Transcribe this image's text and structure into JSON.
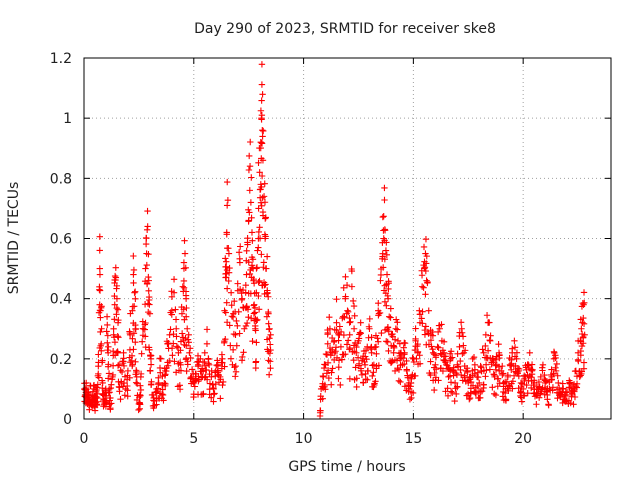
{
  "chart_data": {
    "type": "scatter",
    "title": "Day 290 of 2023, SRMTID for receiver ske8",
    "xlabel": "GPS time / hours",
    "ylabel": "SRMTID / TECUs",
    "xlim": [
      0,
      24
    ],
    "ylim": [
      0,
      1.2
    ],
    "xticks": [
      0,
      5,
      10,
      15,
      20
    ],
    "xtick_labels": [
      "0",
      "5",
      "10",
      "15",
      "20"
    ],
    "yticks": [
      0,
      0.2,
      0.4,
      0.6,
      0.8,
      1.0,
      1.2
    ],
    "ytick_labels": [
      "0",
      "0.2",
      "0.4",
      "0.6",
      "0.8",
      "1",
      "1.2"
    ],
    "grid": true,
    "marker": "+",
    "color": "#ff0000",
    "envelope_note": "dense cloud of points; values approximate",
    "series": [
      {
        "name": "SRMTID",
        "points": [
          [
            0.02,
            0.1
          ],
          [
            0.05,
            0.08
          ],
          [
            0.1,
            0.12
          ],
          [
            0.15,
            0.07
          ],
          [
            0.2,
            0.09
          ],
          [
            0.25,
            0.06
          ],
          [
            0.3,
            0.11
          ],
          [
            0.35,
            0.05
          ],
          [
            0.4,
            0.08
          ],
          [
            0.45,
            0.1
          ],
          [
            0.5,
            0.06
          ],
          [
            0.55,
            0.09
          ],
          [
            0.6,
            0.07
          ],
          [
            0.65,
            0.15
          ],
          [
            0.7,
            0.43
          ],
          [
            0.72,
            0.5
          ],
          [
            0.75,
            0.36
          ],
          [
            0.8,
            0.3
          ],
          [
            0.85,
            0.12
          ],
          [
            0.9,
            0.08
          ],
          [
            0.95,
            0.06
          ],
          [
            1.0,
            0.09
          ],
          [
            1.05,
            0.34
          ],
          [
            1.1,
            0.22
          ],
          [
            1.15,
            0.1
          ],
          [
            1.2,
            0.07
          ],
          [
            1.3,
            0.14
          ],
          [
            1.35,
            0.28
          ],
          [
            1.4,
            0.38
          ],
          [
            1.45,
            0.47
          ],
          [
            1.5,
            0.4
          ],
          [
            1.55,
            0.32
          ],
          [
            1.6,
            0.18
          ],
          [
            1.7,
            0.12
          ],
          [
            1.8,
            0.22
          ],
          [
            1.9,
            0.1
          ],
          [
            2.0,
            0.16
          ],
          [
            2.1,
            0.28
          ],
          [
            2.2,
            0.36
          ],
          [
            2.25,
            0.48
          ],
          [
            2.3,
            0.42
          ],
          [
            2.35,
            0.3
          ],
          [
            2.4,
            0.14
          ],
          [
            2.5,
            0.05
          ],
          [
            2.55,
            0.08
          ],
          [
            2.6,
            0.15
          ],
          [
            2.7,
            0.3
          ],
          [
            2.8,
            0.5
          ],
          [
            2.85,
            0.55
          ],
          [
            2.9,
            0.64
          ],
          [
            2.95,
            0.46
          ],
          [
            3.0,
            0.35
          ],
          [
            3.05,
            0.2
          ],
          [
            3.1,
            0.08
          ],
          [
            3.2,
            0.06
          ],
          [
            3.3,
            0.1
          ],
          [
            3.4,
            0.12
          ],
          [
            3.5,
            0.2
          ],
          [
            3.6,
            0.08
          ],
          [
            3.7,
            0.16
          ],
          [
            3.8,
            0.25
          ],
          [
            3.9,
            0.28
          ],
          [
            4.0,
            0.36
          ],
          [
            4.1,
            0.42
          ],
          [
            4.2,
            0.3
          ],
          [
            4.3,
            0.22
          ],
          [
            4.4,
            0.18
          ],
          [
            4.5,
            0.44
          ],
          [
            4.55,
            0.52
          ],
          [
            4.6,
            0.55
          ],
          [
            4.65,
            0.4
          ],
          [
            4.7,
            0.3
          ],
          [
            4.8,
            0.22
          ],
          [
            4.9,
            0.14
          ],
          [
            5.0,
            0.12
          ],
          [
            5.1,
            0.15
          ],
          [
            5.2,
            0.18
          ],
          [
            5.3,
            0.2
          ],
          [
            5.4,
            0.14
          ],
          [
            5.5,
            0.22
          ],
          [
            5.6,
            0.25
          ],
          [
            5.7,
            0.18
          ],
          [
            5.8,
            0.14
          ],
          [
            5.9,
            0.1
          ],
          [
            6.0,
            0.16
          ],
          [
            6.1,
            0.18
          ],
          [
            6.2,
            0.14
          ],
          [
            6.3,
            0.2
          ],
          [
            6.4,
            0.36
          ],
          [
            6.45,
            0.47
          ],
          [
            6.5,
            0.62
          ],
          [
            6.52,
            0.71
          ],
          [
            6.6,
            0.55
          ],
          [
            6.7,
            0.42
          ],
          [
            6.8,
            0.35
          ],
          [
            6.9,
            0.28
          ],
          [
            7.0,
            0.45
          ],
          [
            7.1,
            0.52
          ],
          [
            7.2,
            0.4
          ],
          [
            7.3,
            0.3
          ],
          [
            7.4,
            0.48
          ],
          [
            7.45,
            0.58
          ],
          [
            7.5,
            0.66
          ],
          [
            7.55,
            0.76
          ],
          [
            7.6,
            0.72
          ],
          [
            7.65,
            0.62
          ],
          [
            7.7,
            0.5
          ],
          [
            7.75,
            0.38
          ],
          [
            7.8,
            0.3
          ],
          [
            7.85,
            0.42
          ],
          [
            7.9,
            0.56
          ],
          [
            7.95,
            0.7
          ],
          [
            8.0,
            0.82
          ],
          [
            8.05,
            0.92
          ],
          [
            8.08,
            1.0
          ],
          [
            8.1,
            1.01
          ],
          [
            8.12,
            0.96
          ],
          [
            8.15,
            0.86
          ],
          [
            8.2,
            0.74
          ],
          [
            8.25,
            0.6
          ],
          [
            8.3,
            0.5
          ],
          [
            8.35,
            0.42
          ],
          [
            8.4,
            0.35
          ],
          [
            8.45,
            0.3
          ],
          [
            8.5,
            0.28
          ],
          [
            10.75,
            0.01
          ],
          [
            10.8,
            0.1
          ],
          [
            10.9,
            0.14
          ],
          [
            11.0,
            0.18
          ],
          [
            11.1,
            0.25
          ],
          [
            11.2,
            0.3
          ],
          [
            11.3,
            0.22
          ],
          [
            11.4,
            0.26
          ],
          [
            11.5,
            0.32
          ],
          [
            11.6,
            0.28
          ],
          [
            11.7,
            0.24
          ],
          [
            11.8,
            0.34
          ],
          [
            11.9,
            0.4
          ],
          [
            12.0,
            0.36
          ],
          [
            12.1,
            0.28
          ],
          [
            12.2,
            0.44
          ],
          [
            12.3,
            0.3
          ],
          [
            12.4,
            0.22
          ],
          [
            12.5,
            0.26
          ],
          [
            12.6,
            0.32
          ],
          [
            12.7,
            0.2
          ],
          [
            12.8,
            0.18
          ],
          [
            12.9,
            0.24
          ],
          [
            13.0,
            0.3
          ],
          [
            13.1,
            0.22
          ],
          [
            13.2,
            0.18
          ],
          [
            13.3,
            0.24
          ],
          [
            13.4,
            0.36
          ],
          [
            13.5,
            0.46
          ],
          [
            13.6,
            0.54
          ],
          [
            13.65,
            0.6
          ],
          [
            13.7,
            0.63
          ],
          [
            13.75,
            0.56
          ],
          [
            13.8,
            0.48
          ],
          [
            13.85,
            0.4
          ],
          [
            13.9,
            0.34
          ],
          [
            14.0,
            0.28
          ],
          [
            14.1,
            0.22
          ],
          [
            14.2,
            0.3
          ],
          [
            14.3,
            0.26
          ],
          [
            14.4,
            0.2
          ],
          [
            14.5,
            0.18
          ],
          [
            14.6,
            0.22
          ],
          [
            14.7,
            0.16
          ],
          [
            14.8,
            0.12
          ],
          [
            14.9,
            0.14
          ],
          [
            15.0,
            0.2
          ],
          [
            15.1,
            0.26
          ],
          [
            15.2,
            0.22
          ],
          [
            15.3,
            0.32
          ],
          [
            15.4,
            0.44
          ],
          [
            15.5,
            0.5
          ],
          [
            15.55,
            0.55
          ],
          [
            15.6,
            0.46
          ],
          [
            15.7,
            0.36
          ],
          [
            15.8,
            0.28
          ],
          [
            15.9,
            0.22
          ],
          [
            16.0,
            0.18
          ],
          [
            16.1,
            0.24
          ],
          [
            16.2,
            0.3
          ],
          [
            16.3,
            0.26
          ],
          [
            16.4,
            0.22
          ],
          [
            16.5,
            0.18
          ],
          [
            16.6,
            0.14
          ],
          [
            16.7,
            0.2
          ],
          [
            16.8,
            0.16
          ],
          [
            16.9,
            0.12
          ],
          [
            17.0,
            0.18
          ],
          [
            17.1,
            0.24
          ],
          [
            17.2,
            0.3
          ],
          [
            17.3,
            0.22
          ],
          [
            17.4,
            0.16
          ],
          [
            17.5,
            0.12
          ],
          [
            17.6,
            0.14
          ],
          [
            17.7,
            0.2
          ],
          [
            17.8,
            0.18
          ],
          [
            17.9,
            0.14
          ],
          [
            18.0,
            0.12
          ],
          [
            18.1,
            0.16
          ],
          [
            18.2,
            0.22
          ],
          [
            18.3,
            0.28
          ],
          [
            18.4,
            0.32
          ],
          [
            18.5,
            0.26
          ],
          [
            18.6,
            0.2
          ],
          [
            18.7,
            0.14
          ],
          [
            18.8,
            0.18
          ],
          [
            18.9,
            0.22
          ],
          [
            19.0,
            0.16
          ],
          [
            19.1,
            0.12
          ],
          [
            19.2,
            0.1
          ],
          [
            19.3,
            0.14
          ],
          [
            19.4,
            0.18
          ],
          [
            19.5,
            0.22
          ],
          [
            19.6,
            0.26
          ],
          [
            19.7,
            0.2
          ],
          [
            19.8,
            0.16
          ],
          [
            19.9,
            0.12
          ],
          [
            20.0,
            0.1
          ],
          [
            20.1,
            0.14
          ],
          [
            20.2,
            0.18
          ],
          [
            20.3,
            0.22
          ],
          [
            20.4,
            0.16
          ],
          [
            20.5,
            0.12
          ],
          [
            20.6,
            0.08
          ],
          [
            20.7,
            0.1
          ],
          [
            20.8,
            0.14
          ],
          [
            20.9,
            0.18
          ],
          [
            21.0,
            0.12
          ],
          [
            21.1,
            0.08
          ],
          [
            21.2,
            0.1
          ],
          [
            21.3,
            0.14
          ],
          [
            21.4,
            0.2
          ],
          [
            21.5,
            0.16
          ],
          [
            21.6,
            0.12
          ],
          [
            21.7,
            0.08
          ],
          [
            21.8,
            0.1
          ],
          [
            21.9,
            0.06
          ],
          [
            22.0,
            0.09
          ],
          [
            22.1,
            0.12
          ],
          [
            22.2,
            0.08
          ],
          [
            22.3,
            0.11
          ],
          [
            22.4,
            0.16
          ],
          [
            22.5,
            0.22
          ],
          [
            22.6,
            0.26
          ],
          [
            22.65,
            0.3
          ],
          [
            22.7,
            0.32
          ],
          [
            22.75,
            0.38
          ],
          [
            22.8,
            0.28
          ]
        ]
      }
    ]
  }
}
